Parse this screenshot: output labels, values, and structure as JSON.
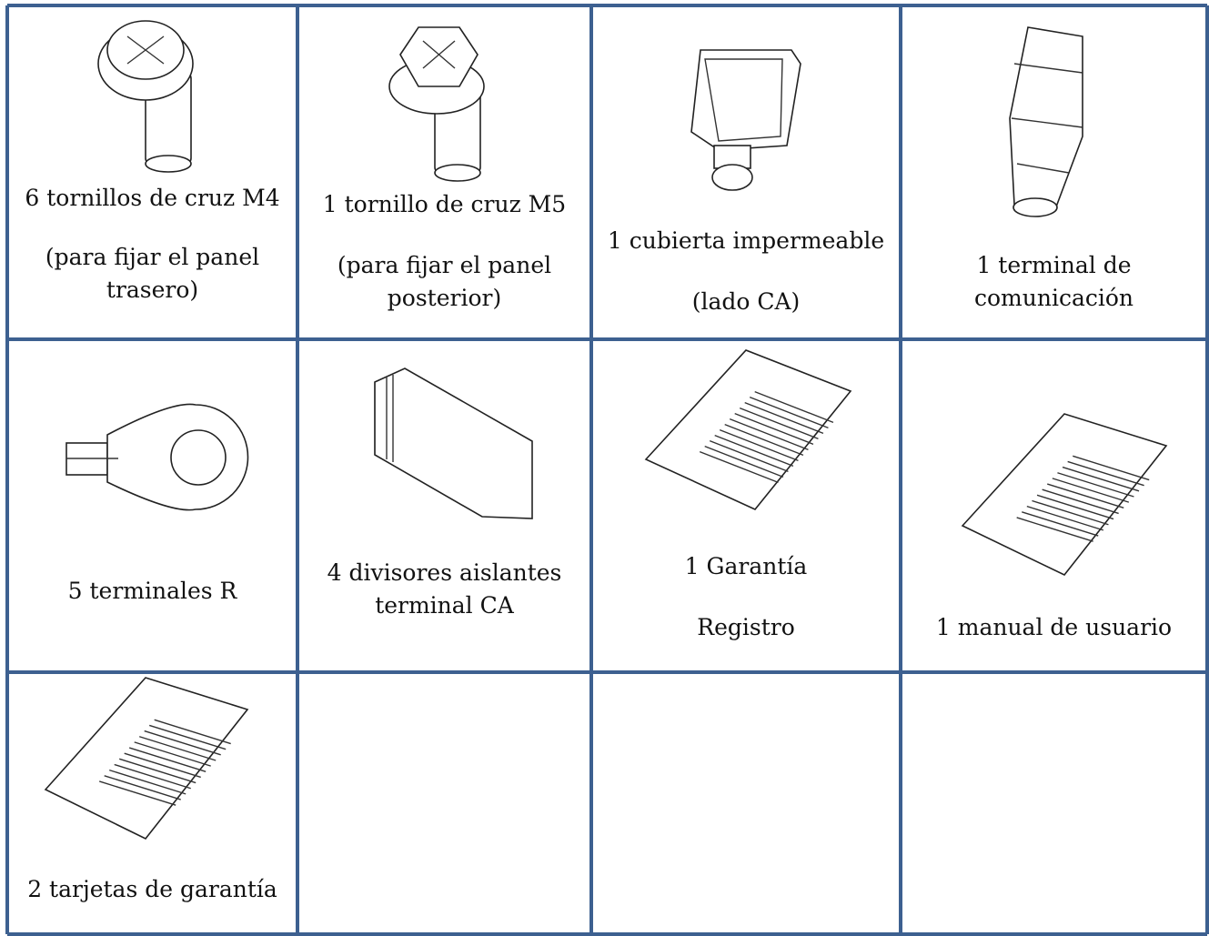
{
  "table": {
    "items": [
      {
        "lines": [
          "6 tornillos de cruz M4",
          "(para fijar el panel trasero)"
        ]
      },
      {
        "lines": [
          "1 tornillo de cruz M5",
          "(para fijar el panel posterior)"
        ]
      },
      {
        "lines": [
          "1 cubierta impermeable",
          "(lado CA)"
        ]
      },
      {
        "lines": [
          "1 terminal de comunicación"
        ]
      },
      {
        "lines": [
          "5 terminales R"
        ]
      },
      {
        "lines": [
          "4 divisores aislantes terminal CA"
        ]
      },
      {
        "lines": [
          "1 Garantía",
          "Registro"
        ]
      },
      {
        "lines": [
          "1 manual de usuario"
        ]
      },
      {
        "lines": [
          "2 tarjetas de garantía"
        ]
      }
    ]
  }
}
